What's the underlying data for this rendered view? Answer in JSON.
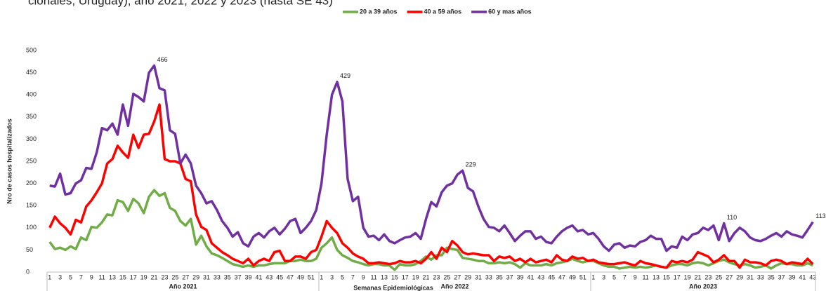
{
  "chart_data": {
    "type": "line",
    "title": "cionales, Uruguay), año 2021, 2022 y 2023 (hasta SE 43)",
    "ylabel": "Nro de casos hospitalizados",
    "xlabel": "Semanas Epidemiológicas",
    "groups": [
      {
        "label": "Año 2021",
        "size": 52
      },
      {
        "label": "Año 2022",
        "size": 52
      },
      {
        "label": "Año 2023",
        "size": 43
      }
    ],
    "categories": [
      1,
      null,
      3,
      null,
      5,
      null,
      7,
      null,
      9,
      null,
      11,
      null,
      13,
      null,
      15,
      null,
      17,
      null,
      19,
      null,
      21,
      null,
      23,
      null,
      25,
      null,
      27,
      null,
      29,
      null,
      31,
      null,
      33,
      null,
      35,
      null,
      37,
      null,
      39,
      null,
      41,
      null,
      43,
      null,
      45,
      null,
      47,
      null,
      49,
      null,
      51,
      null,
      1,
      null,
      3,
      null,
      5,
      null,
      7,
      null,
      9,
      null,
      11,
      null,
      13,
      null,
      15,
      null,
      17,
      null,
      19,
      null,
      21,
      null,
      23,
      null,
      25,
      null,
      27,
      null,
      29,
      null,
      31,
      null,
      33,
      null,
      35,
      null,
      37,
      null,
      39,
      null,
      41,
      null,
      43,
      null,
      45,
      null,
      47,
      null,
      49,
      null,
      51,
      null,
      1,
      null,
      3,
      null,
      5,
      null,
      7,
      null,
      9,
      null,
      11,
      null,
      13,
      null,
      15,
      null,
      17,
      null,
      19,
      null,
      21,
      null,
      23,
      null,
      25,
      null,
      27,
      null,
      29,
      null,
      31,
      null,
      33,
      null,
      35,
      null,
      37,
      null,
      39,
      null,
      41,
      null,
      43
    ],
    "series": [
      {
        "name": "20 a 39 años",
        "color": "#70ad47",
        "values": [
          68,
          52,
          55,
          50,
          58,
          52,
          78,
          72,
          102,
          100,
          112,
          130,
          128,
          162,
          158,
          138,
          165,
          155,
          133,
          170,
          185,
          172,
          178,
          145,
          138,
          115,
          105,
          120,
          62,
          82,
          58,
          42,
          38,
          32,
          25,
          18,
          15,
          12,
          15,
          12,
          15,
          15,
          18,
          20,
          20,
          20,
          25,
          25,
          28,
          25,
          25,
          30,
          55,
          65,
          78,
          50,
          38,
          32,
          25,
          22,
          18,
          15,
          18,
          18,
          15,
          15,
          5,
          18,
          15,
          15,
          18,
          25,
          35,
          28,
          38,
          38,
          55,
          52,
          50,
          32,
          30,
          28,
          25,
          25,
          20,
          20,
          22,
          20,
          22,
          18,
          10,
          20,
          15,
          15,
          15,
          18,
          15,
          20,
          22,
          25,
          30,
          25,
          22,
          25,
          25,
          20,
          15,
          12,
          12,
          8,
          10,
          12,
          10,
          12,
          10,
          12,
          15,
          12,
          10,
          15,
          18,
          18,
          15,
          20,
          22,
          20,
          15,
          20,
          25,
          28,
          22,
          18,
          15,
          18,
          15,
          10,
          12,
          15,
          8,
          15,
          20,
          18,
          18,
          15,
          15,
          20,
          15
        ]
      },
      {
        "name": "40 a 59 años",
        "color": "#ff0000",
        "values": [
          100,
          125,
          110,
          100,
          85,
          118,
          112,
          148,
          162,
          180,
          200,
          245,
          255,
          285,
          270,
          258,
          310,
          280,
          310,
          312,
          340,
          378,
          255,
          250,
          250,
          245,
          210,
          205,
          130,
          102,
          95,
          65,
          55,
          45,
          38,
          30,
          25,
          20,
          30,
          15,
          25,
          30,
          25,
          45,
          48,
          25,
          25,
          35,
          35,
          30,
          45,
          50,
          80,
          115,
          100,
          88,
          65,
          55,
          42,
          35,
          30,
          20,
          20,
          22,
          20,
          18,
          20,
          25,
          22,
          22,
          25,
          20,
          30,
          45,
          30,
          55,
          45,
          70,
          60,
          45,
          40,
          42,
          40,
          38,
          38,
          25,
          35,
          32,
          35,
          25,
          30,
          22,
          30,
          22,
          25,
          28,
          22,
          38,
          28,
          25,
          35,
          30,
          32,
          25,
          28,
          22,
          20,
          18,
          18,
          20,
          22,
          18,
          15,
          25,
          20,
          18,
          15,
          12,
          10,
          25,
          22,
          25,
          22,
          28,
          45,
          40,
          35,
          22,
          28,
          38,
          25,
          25,
          10,
          28,
          22,
          22,
          20,
          15,
          25,
          28,
          25,
          18,
          22,
          20,
          18,
          30,
          18
        ]
      },
      {
        "name": "60 y mas años",
        "color": "#7030a0",
        "values": [
          195,
          193,
          222,
          175,
          178,
          200,
          207,
          235,
          233,
          270,
          325,
          320,
          335,
          310,
          378,
          330,
          402,
          395,
          385,
          450,
          466,
          415,
          410,
          320,
          312,
          245,
          265,
          245,
          195,
          178,
          155,
          160,
          140,
          115,
          100,
          80,
          90,
          65,
          58,
          80,
          88,
          78,
          92,
          100,
          85,
          98,
          115,
          120,
          88,
          100,
          115,
          140,
          200,
          310,
          400,
          429,
          385,
          210,
          160,
          170,
          100,
          80,
          82,
          72,
          85,
          70,
          65,
          72,
          78,
          80,
          88,
          75,
          120,
          158,
          148,
          180,
          195,
          200,
          220,
          229,
          190,
          182,
          148,
          120,
          102,
          100,
          92,
          105,
          88,
          70,
          82,
          92,
          92,
          75,
          80,
          68,
          65,
          80,
          92,
          100,
          105,
          92,
          95,
          85,
          88,
          75,
          58,
          48,
          62,
          65,
          55,
          60,
          58,
          68,
          72,
          82,
          75,
          75,
          48,
          58,
          55,
          80,
          72,
          85,
          88,
          100,
          95,
          105,
          72,
          110,
          70,
          88,
          100,
          92,
          78,
          72,
          70,
          75,
          82,
          88,
          80,
          92,
          85,
          82,
          78,
          95,
          113
        ]
      }
    ],
    "data_labels": {
      "series": 2,
      "indices": [
        20,
        55,
        79,
        129,
        146
      ]
    },
    "ylim": [
      0,
      500
    ],
    "yticks": [
      0,
      50,
      100,
      150,
      200,
      250,
      300,
      350,
      400,
      450,
      500
    ],
    "grid": false,
    "legend": "top"
  }
}
